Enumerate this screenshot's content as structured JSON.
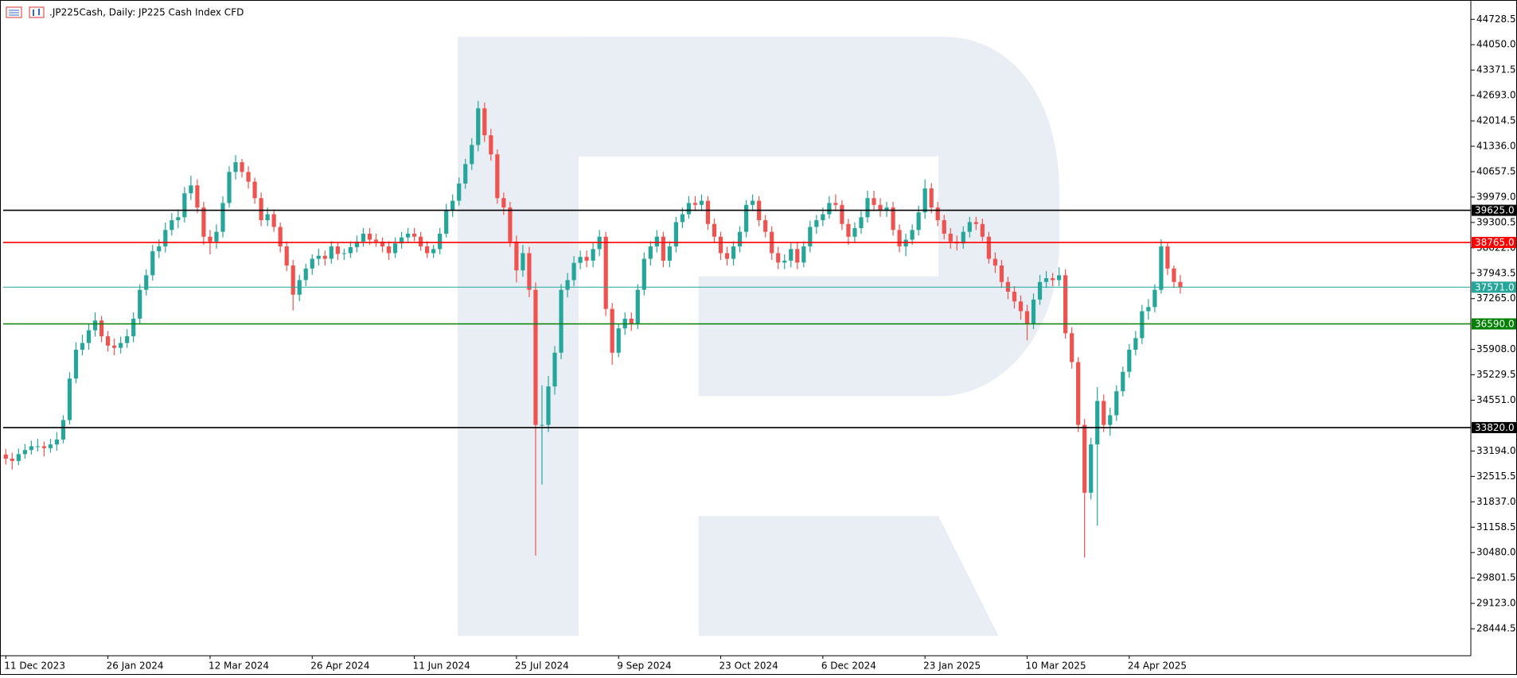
{
  "chart_data": {
    "type": "candlestick",
    "title": ".JP225Cash, Daily:  JP225 Cash Index CFD",
    "up_color": "#26a69a",
    "down_color": "#ef5350",
    "ylim": [
      27745,
      45193
    ],
    "yticks": [
      {
        "value": 44728.5,
        "label": "44728.5"
      },
      {
        "value": 44050,
        "label": "44050.0"
      },
      {
        "value": 43371.5,
        "label": "43371.5"
      },
      {
        "value": 42693,
        "label": "42693.0"
      },
      {
        "value": 42014.5,
        "label": "42014.5"
      },
      {
        "value": 41336,
        "label": "41336.0"
      },
      {
        "value": 40657.5,
        "label": "40657.5"
      },
      {
        "value": 39979,
        "label": "39979.0"
      },
      {
        "value": 39300.5,
        "label": "39300.5"
      },
      {
        "value": 38622,
        "label": "38622.0"
      },
      {
        "value": 37943.5,
        "label": "37943.5"
      },
      {
        "value": 37265,
        "label": "37265.0"
      },
      {
        "value": 35908,
        "label": "35908.0"
      },
      {
        "value": 35229.5,
        "label": "35229.5"
      },
      {
        "value": 34551,
        "label": "34551.0"
      },
      {
        "value": 33194,
        "label": "33194.0"
      },
      {
        "value": 32515.5,
        "label": "32515.5"
      },
      {
        "value": 31837,
        "label": "31837.0"
      },
      {
        "value": 31158.5,
        "label": "31158.5"
      },
      {
        "value": 30480,
        "label": "30480.0"
      },
      {
        "value": 29801.5,
        "label": "29801.5"
      },
      {
        "value": 29123,
        "label": "29123.0"
      },
      {
        "value": 28444.5,
        "label": "28444.5"
      }
    ],
    "levels": [
      {
        "value": 39625,
        "label": "39625.0",
        "color": "#000000"
      },
      {
        "value": 38765,
        "label": "38765.0",
        "color": "#ff0000"
      },
      {
        "value": 37571,
        "label": "37571.0",
        "color": "#26a69a"
      },
      {
        "value": 36590,
        "label": "36590.0",
        "color": "#008000"
      },
      {
        "value": 33820,
        "label": "33820.0",
        "color": "#000000"
      }
    ],
    "categories": [
      "11 Dec 2023",
      null,
      null,
      null,
      null,
      null,
      null,
      null,
      null,
      null,
      null,
      null,
      null,
      null,
      null,
      null,
      "26 Jan 2024",
      null,
      null,
      null,
      null,
      null,
      null,
      null,
      null,
      null,
      null,
      null,
      null,
      null,
      null,
      null,
      "12 Mar 2024",
      null,
      null,
      null,
      null,
      null,
      null,
      null,
      null,
      null,
      null,
      null,
      null,
      null,
      null,
      null,
      "26 Apr 2024",
      null,
      null,
      null,
      null,
      null,
      null,
      null,
      null,
      null,
      null,
      null,
      null,
      null,
      null,
      null,
      "11 Jun 2024",
      null,
      null,
      null,
      null,
      null,
      null,
      null,
      null,
      null,
      null,
      null,
      null,
      null,
      null,
      null,
      "25 Jul 2024",
      null,
      null,
      null,
      null,
      null,
      null,
      null,
      null,
      null,
      null,
      null,
      null,
      null,
      null,
      null,
      "9 Sep 2024",
      null,
      null,
      null,
      null,
      null,
      null,
      null,
      null,
      null,
      null,
      null,
      null,
      null,
      null,
      null,
      "23 Oct 2024",
      null,
      null,
      null,
      null,
      null,
      null,
      null,
      null,
      null,
      null,
      null,
      null,
      null,
      null,
      null,
      "6 Dec 2024",
      null,
      null,
      null,
      null,
      null,
      null,
      null,
      null,
      null,
      null,
      null,
      null,
      null,
      null,
      null,
      "23 Jan 2025",
      null,
      null,
      null,
      null,
      null,
      null,
      null,
      null,
      null,
      null,
      null,
      null,
      null,
      null,
      null,
      "10 Mar 2025",
      null,
      null,
      null,
      null,
      null,
      null,
      null,
      null,
      null,
      null,
      null,
      null,
      null,
      null,
      null,
      "24 Apr 2025",
      null,
      null,
      null,
      null,
      null,
      null,
      null,
      null
    ],
    "open": [
      33100,
      32990,
      32930,
      33110,
      33220,
      33320,
      33320,
      33270,
      33370,
      33500,
      34020,
      35130,
      35900,
      36080,
      36420,
      36680,
      36260,
      36010,
      35950,
      36080,
      36260,
      36730,
      37500,
      37890,
      38530,
      38660,
      39100,
      39360,
      39440,
      40080,
      40290,
      39700,
      38920,
      38790,
      39050,
      39820,
      40650,
      40910,
      40650,
      40390,
      39950,
      39360,
      39520,
      39180,
      38660,
      38150,
      37370,
      37760,
      38070,
      38330,
      38410,
      38330,
      38660,
      38460,
      38480,
      38640,
      38790,
      39000,
      38840,
      38790,
      38660,
      38480,
      38740,
      38900,
      39000,
      38920,
      38660,
      38480,
      38590,
      39000,
      39620,
      39880,
      40340,
      40860,
      41370,
      42350,
      41630,
      41120,
      39950,
      39700,
      38790,
      38020,
      38480,
      37500,
      33890,
      33890,
      34920,
      35820,
      37500,
      37760,
      38220,
      38380,
      38280,
      38590,
      38920,
      36990,
      35820,
      36470,
      36730,
      36600,
      37500,
      38330,
      38660,
      38920,
      38280,
      38660,
      39310,
      39520,
      39820,
      39770,
      39880,
      39260,
      38920,
      38480,
      38330,
      38660,
      39050,
      39770,
      39880,
      39360,
      39050,
      38480,
      38230,
      38280,
      38590,
      38230,
      38660,
      39180,
      39360,
      39520,
      39820,
      39770,
      39260,
      38920,
      39150,
      39440,
      39950,
      39770,
      39620,
      39700,
      39100,
      38660,
      38840,
      39100,
      39570,
      40210,
      39700,
      39360,
      39000,
      38790,
      38740,
      39050,
      39310,
      39260,
      38920,
      38330,
      38150,
      37710,
      37450,
      37190,
      36930,
      36600,
      37240,
      37710,
      37810,
      37760,
      37890,
      36340,
      35570,
      33890,
      32080,
      33370,
      34530,
      33890,
      34150,
      34790,
      35310,
      35900,
      36210,
      36930,
      37040,
      37500,
      38660,
      38070,
      37710
    ],
    "high": [
      33250,
      33150,
      33260,
      33380,
      33470,
      33520,
      33450,
      33520,
      33700,
      34150,
      35300,
      36100,
      36300,
      36600,
      36900,
      36800,
      36400,
      36200,
      36250,
      36450,
      36900,
      37650,
      38050,
      38700,
      38850,
      39300,
      39550,
      39650,
      40250,
      40550,
      40450,
      39850,
      39100,
      39250,
      40000,
      40800,
      41100,
      41000,
      40800,
      40500,
      40100,
      39700,
      39650,
      39300,
      38800,
      38300,
      37900,
      38200,
      38450,
      38600,
      38550,
      38800,
      38750,
      38600,
      38800,
      38950,
      39150,
      39150,
      39000,
      38900,
      38800,
      38900,
      39050,
      39150,
      39150,
      39050,
      38800,
      38700,
      39150,
      39800,
      40050,
      40500,
      41000,
      41550,
      42550,
      42500,
      41800,
      41250,
      40100,
      39850,
      38950,
      38700,
      38650,
      37700,
      34950,
      35200,
      36000,
      37650,
      37950,
      38400,
      38550,
      38550,
      38750,
      39100,
      39050,
      37150,
      36600,
      36900,
      36900,
      37650,
      38500,
      38800,
      39100,
      39050,
      38800,
      39450,
      39700,
      40000,
      40000,
      40050,
      40000,
      39400,
      39050,
      38650,
      38800,
      39200,
      39900,
      40050,
      40000,
      39500,
      39200,
      38650,
      38450,
      38750,
      38750,
      38800,
      39350,
      39500,
      39700,
      40000,
      40050,
      39900,
      39400,
      39300,
      39600,
      40150,
      40150,
      39950,
      39850,
      39850,
      39250,
      39000,
      39250,
      39750,
      40450,
      40350,
      39850,
      39500,
      39150,
      38950,
      39200,
      39450,
      39450,
      39400,
      39050,
      38500,
      38300,
      37850,
      37600,
      37350,
      37100,
      37400,
      37900,
      38000,
      37950,
      38100,
      38050,
      36500,
      35700,
      34050,
      33550,
      34900,
      34700,
      34350,
      34950,
      35450,
      36050,
      36400,
      37100,
      37250,
      37650,
      38850,
      38750,
      38150,
      37900
    ],
    "low": [
      32830,
      32700,
      32820,
      32990,
      33100,
      33180,
      33050,
      33150,
      33200,
      33400,
      33900,
      35000,
      35750,
      35900,
      36250,
      36100,
      35850,
      35750,
      35800,
      35950,
      36100,
      36600,
      37350,
      37750,
      38350,
      38500,
      38950,
      39150,
      39300,
      39900,
      39550,
      38700,
      38450,
      38600,
      38900,
      39700,
      40450,
      40500,
      40200,
      39800,
      39200,
      39200,
      39050,
      38500,
      38000,
      36950,
      37200,
      37600,
      37900,
      38150,
      38150,
      38200,
      38300,
      38300,
      38350,
      38500,
      38650,
      38700,
      38650,
      38500,
      38300,
      38350,
      38600,
      38750,
      38800,
      38550,
      38350,
      38350,
      38450,
      38900,
      39450,
      39750,
      40200,
      40700,
      41200,
      41450,
      40950,
      39800,
      39500,
      38650,
      37700,
      37850,
      37300,
      30400,
      32300,
      33700,
      34700,
      35650,
      37300,
      37600,
      38050,
      38100,
      38100,
      38400,
      36800,
      35500,
      35700,
      36300,
      36400,
      36450,
      37350,
      38150,
      38500,
      38100,
      38100,
      38500,
      39150,
      39400,
      39600,
      39600,
      39100,
      38750,
      38300,
      38150,
      38150,
      38500,
      38900,
      39600,
      39200,
      38900,
      38300,
      38050,
      38050,
      38100,
      38050,
      38100,
      38500,
      39000,
      39200,
      39400,
      39600,
      39100,
      38700,
      38750,
      39000,
      39300,
      39600,
      39450,
      39450,
      38950,
      38500,
      38400,
      38700,
      38950,
      39400,
      39550,
      39200,
      38850,
      38600,
      38550,
      38600,
      38900,
      39100,
      38800,
      38200,
      37950,
      37550,
      37250,
      37000,
      36700,
      36150,
      36450,
      37100,
      37550,
      37600,
      37600,
      36200,
      35400,
      33700,
      30350,
      31900,
      31200,
      33700,
      33600,
      34000,
      34650,
      35150,
      35750,
      36050,
      36700,
      36900,
      37400,
      37900,
      37550,
      37400
    ],
    "close": [
      32990,
      32930,
      33110,
      33220,
      33320,
      33320,
      33270,
      33370,
      33500,
      34020,
      35130,
      35900,
      36080,
      36420,
      36680,
      36260,
      36010,
      35950,
      36080,
      36260,
      36730,
      37500,
      37890,
      38530,
      38660,
      39100,
      39360,
      39440,
      40080,
      40290,
      39700,
      38920,
      38790,
      39050,
      39820,
      40650,
      40910,
      40650,
      40390,
      39950,
      39360,
      39520,
      39180,
      38660,
      38150,
      37370,
      37760,
      38070,
      38330,
      38410,
      38330,
      38660,
      38460,
      38480,
      38640,
      38790,
      39000,
      38840,
      38790,
      38660,
      38480,
      38740,
      38900,
      39000,
      38920,
      38660,
      38480,
      38590,
      39000,
      39620,
      39880,
      40340,
      40860,
      41370,
      42350,
      41630,
      41120,
      39950,
      39700,
      38790,
      38020,
      38480,
      37500,
      33890,
      33890,
      34920,
      35820,
      37500,
      37760,
      38220,
      38380,
      38280,
      38590,
      38920,
      36990,
      35820,
      36470,
      36730,
      36600,
      37500,
      38330,
      38660,
      38920,
      38280,
      38660,
      39310,
      39520,
      39820,
      39770,
      39880,
      39260,
      38920,
      38480,
      38330,
      38660,
      39050,
      39770,
      39880,
      39360,
      39050,
      38480,
      38230,
      38280,
      38590,
      38230,
      38660,
      39180,
      39360,
      39520,
      39820,
      39770,
      39260,
      38920,
      39150,
      39440,
      39950,
      39770,
      39620,
      39700,
      39100,
      38660,
      38840,
      39100,
      39570,
      40210,
      39700,
      39360,
      39000,
      38790,
      38740,
      39050,
      39310,
      39260,
      38920,
      38330,
      38150,
      37710,
      37450,
      37190,
      36930,
      36600,
      37240,
      37710,
      37810,
      37760,
      37890,
      36340,
      35570,
      33890,
      32080,
      33370,
      34530,
      33890,
      34150,
      34790,
      35310,
      35900,
      36210,
      36930,
      37040,
      37500,
      38660,
      38070,
      37710,
      37571
    ]
  }
}
